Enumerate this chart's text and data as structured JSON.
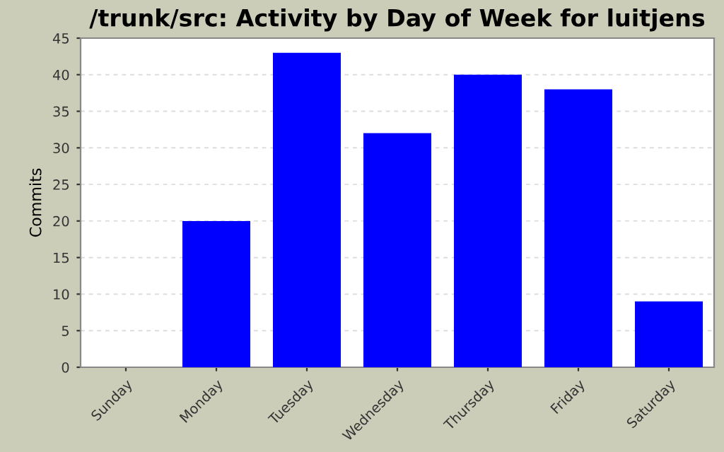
{
  "chart_data": {
    "type": "bar",
    "title": "/trunk/src: Activity by Day of Week for luitjens",
    "ylabel": "Commits",
    "categories": [
      "Sunday",
      "Monday",
      "Tuesday",
      "Wednesday",
      "Thursday",
      "Friday",
      "Saturday"
    ],
    "values": [
      0,
      20,
      43,
      32,
      40,
      38,
      9
    ],
    "color": "#0000ff",
    "ylim": [
      0,
      45
    ],
    "yticks": [
      0,
      5,
      10,
      15,
      20,
      25,
      30,
      35,
      40,
      45
    ],
    "grid": "y"
  }
}
